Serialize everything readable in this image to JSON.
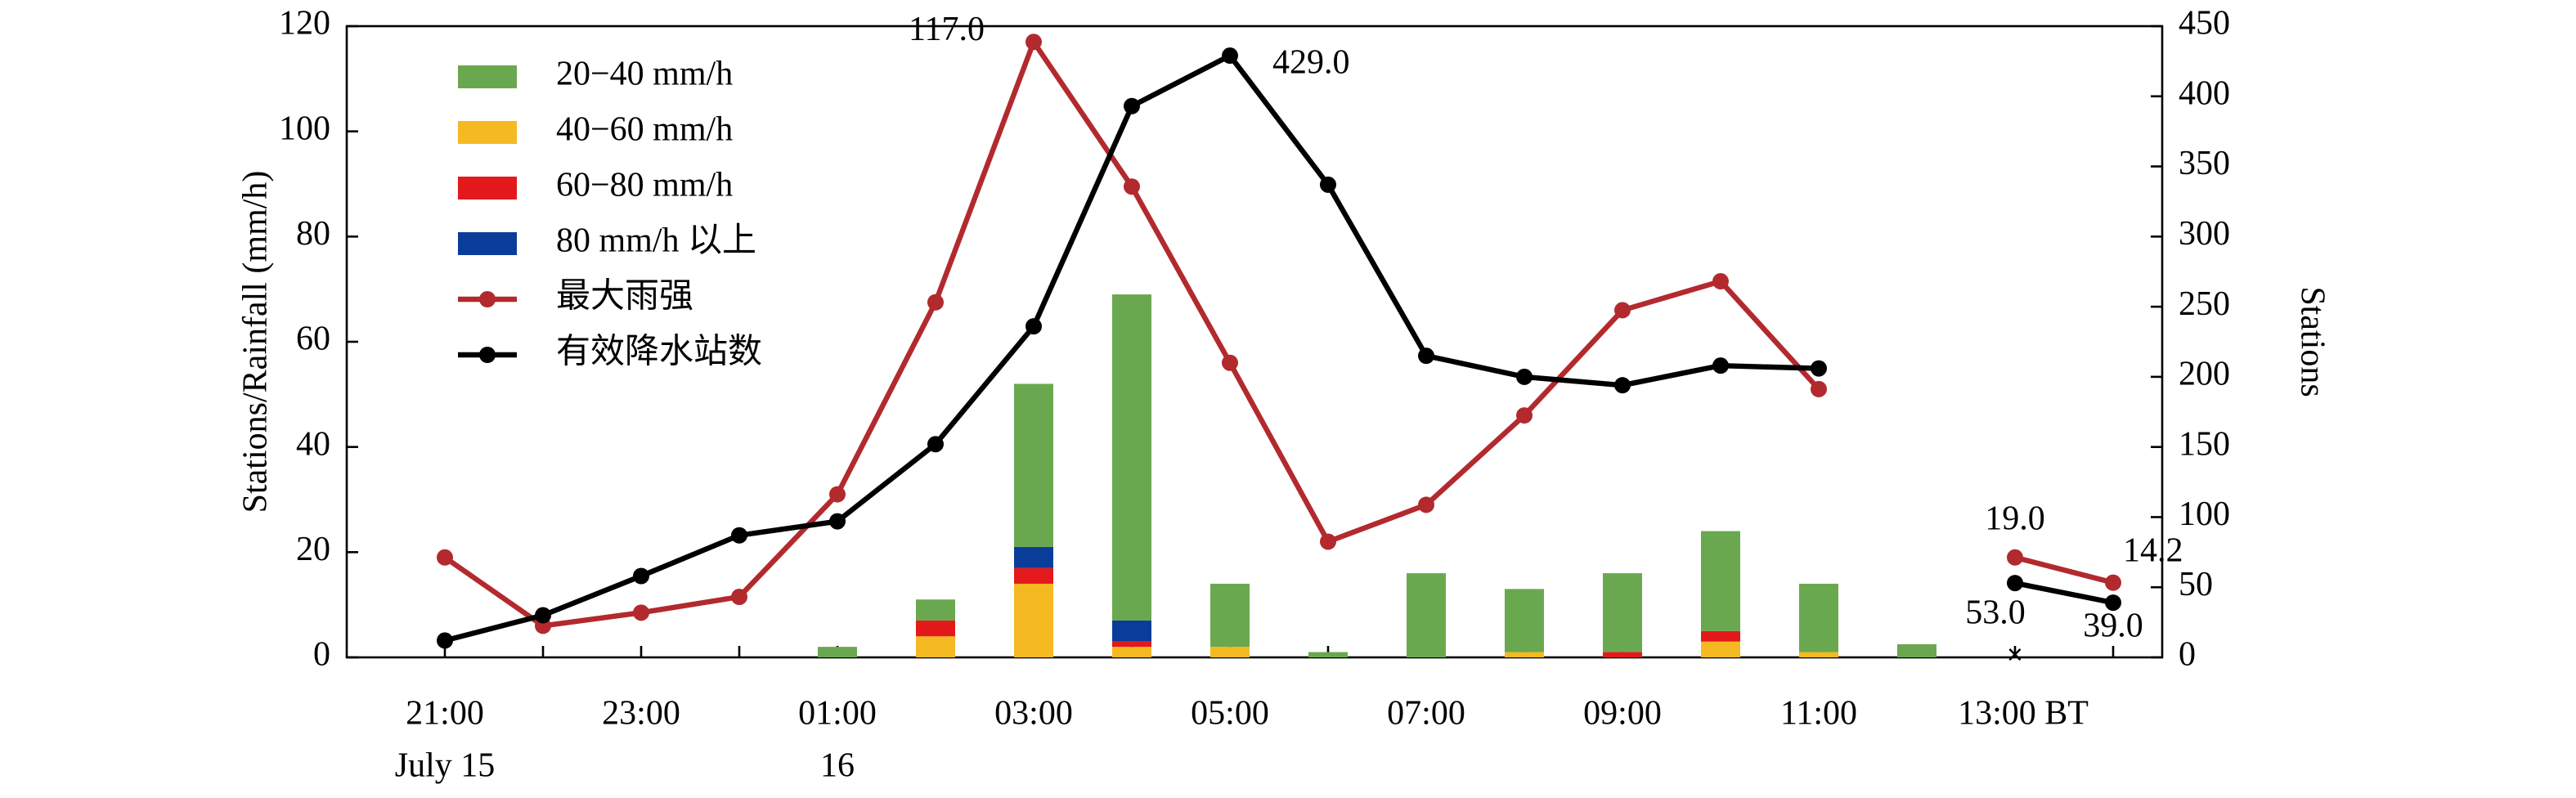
{
  "chart_data": {
    "type": "combo",
    "categories": [
      "21:00",
      null,
      "23:00",
      null,
      "01:00",
      null,
      "03:00",
      null,
      "05:00",
      null,
      "07:00",
      null,
      "09:00",
      null,
      "11:00",
      null,
      "13:00 BT",
      null
    ],
    "date_labels": [
      "July 15",
      null,
      null,
      null,
      "16",
      null,
      null,
      null,
      null,
      null,
      null,
      null,
      null,
      null,
      null,
      null,
      null,
      null
    ],
    "ylabel": "Stations/Rainfall (mm/h)",
    "y2label": "Stations",
    "ylim": [
      0,
      120
    ],
    "yticks": [
      0,
      20,
      40,
      60,
      80,
      100,
      120
    ],
    "y2lim": [
      0,
      450
    ],
    "y2ticks": [
      0,
      50,
      100,
      150,
      200,
      250,
      300,
      350,
      400,
      450
    ],
    "legend": "upper left",
    "series": [
      {
        "name": "20−40 mm/h",
        "type": "bar",
        "color": "#6aa84f",
        "values": [
          0,
          0,
          0,
          0,
          2,
          4,
          31,
          62,
          12,
          1,
          16,
          12,
          15,
          19,
          13,
          2.5,
          0,
          0
        ]
      },
      {
        "name": "40−60 mm/h",
        "type": "bar",
        "color": "#f5b921",
        "values": [
          0,
          0,
          0,
          0,
          0,
          4,
          14,
          2,
          2,
          0,
          0,
          1,
          0,
          3,
          1,
          0,
          0,
          0
        ]
      },
      {
        "name": "60−80 mm/h",
        "type": "bar",
        "color": "#e3191c",
        "values": [
          0,
          0,
          0,
          0,
          0,
          3,
          3,
          1,
          0,
          0,
          0,
          0,
          1,
          2,
          0,
          0,
          0,
          0
        ]
      },
      {
        "name": "80 mm/h 以上",
        "type": "bar",
        "color": "#0a3d9a",
        "values": [
          0,
          0,
          0,
          0,
          0,
          0,
          4,
          4,
          0,
          0,
          0,
          0,
          0,
          0,
          0,
          0,
          0,
          0
        ]
      },
      {
        "name": "最大雨强",
        "type": "line",
        "color": "#b22a2e",
        "values": [
          19,
          6,
          8.5,
          11.5,
          31,
          67.5,
          117,
          89.5,
          56,
          22,
          29,
          46,
          66,
          71.5,
          51,
          null,
          19,
          14.2
        ],
        "value_labels": [
          null,
          null,
          null,
          null,
          null,
          null,
          "117.0",
          null,
          null,
          null,
          null,
          null,
          null,
          null,
          null,
          null,
          "19.0",
          "14.2"
        ]
      },
      {
        "name": "有效降水站数",
        "type": "line",
        "axis": "y2",
        "color": "#000000",
        "values": [
          12,
          30,
          58,
          87,
          97,
          152,
          236,
          393,
          429,
          337,
          215,
          200,
          194,
          208,
          206,
          null,
          53,
          39
        ],
        "value_labels": [
          null,
          null,
          null,
          null,
          null,
          null,
          null,
          null,
          "429.0",
          null,
          null,
          null,
          null,
          null,
          null,
          null,
          "53.0",
          "39.0"
        ]
      }
    ]
  }
}
